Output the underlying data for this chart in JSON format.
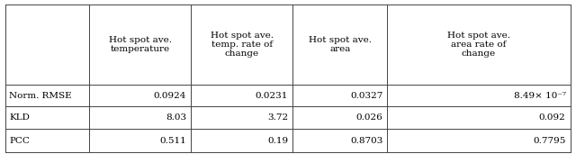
{
  "col_headers": [
    "Hot spot ave.\ntemperature",
    "Hot spot ave.\ntemp. rate of\nchange",
    "Hot spot ave.\narea",
    "Hot spot ave.\narea rate of\nchange"
  ],
  "row_headers": [
    "Norm. RMSE",
    "KLD",
    "PCC"
  ],
  "cell_data": [
    [
      "0.0924",
      "0.0231",
      "0.0327",
      "8.49× 10⁻⁷"
    ],
    [
      "8.03",
      "3.72",
      "0.026",
      "0.092"
    ],
    [
      "0.511",
      "0.19",
      "0.8703",
      "0.7795"
    ]
  ],
  "background_color": "#ffffff",
  "line_color": "#444444",
  "font_size": 7.5,
  "header_font_size": 7.5,
  "col_bounds": [
    0.0,
    0.148,
    0.328,
    0.508,
    0.676,
    1.0
  ],
  "row_bounds": [
    1.0,
    0.46,
    0.31,
    0.16,
    0.0
  ]
}
